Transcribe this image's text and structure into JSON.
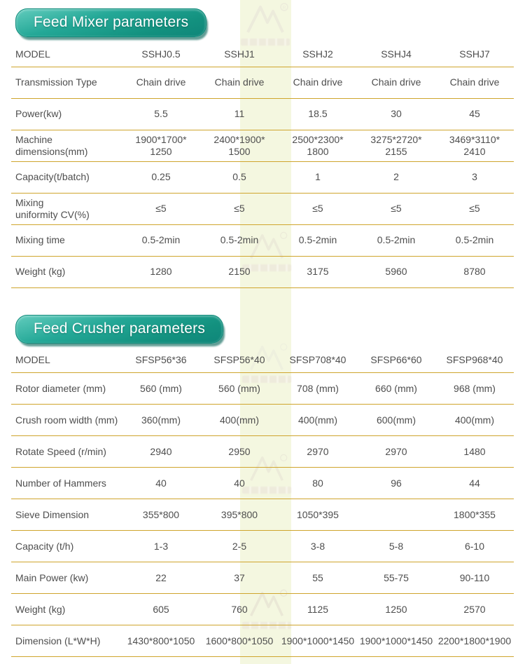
{
  "page": {
    "colors": {
      "accent_line": "#cfa52d",
      "banner_teal": "#17998a",
      "banner_shadow": "#0d685c",
      "text": "#4e4e4e",
      "watermark_stripe": "#f4f7e0"
    }
  },
  "watermark": {
    "name": "manufacturer-logo-watermark"
  },
  "tables": [
    {
      "title": "Feed Mixer parameters",
      "columns": [
        "MODEL",
        "SSHJ0.5",
        "SSHJ1",
        "SSHJ2",
        "SSHJ4",
        "SSHJ7"
      ],
      "rows": [
        {
          "label": "Transmission Type",
          "values": [
            "Chain drive",
            "Chain drive",
            "Chain drive",
            "Chain drive",
            "Chain drive"
          ]
        },
        {
          "label": "Power(kw)",
          "values": [
            "5.5",
            "11",
            "18.5",
            "30",
            "45"
          ]
        },
        {
          "label": "Machine\ndimensions(mm)",
          "values": [
            "1900*1700*\n1250",
            "2400*1900*\n1500",
            "2500*2300*\n1800",
            "3275*2720*\n2155",
            "3469*3110*\n2410"
          ]
        },
        {
          "label": "Capacity(t/batch)",
          "values": [
            "0.25",
            "0.5",
            "1",
            "2",
            "3"
          ]
        },
        {
          "label": "Mixing\nuniformity CV(%)",
          "values": [
            "≤5",
            "≤5",
            "≤5",
            "≤5",
            "≤5"
          ]
        },
        {
          "label": "Mixing time",
          "values": [
            "0.5-2min",
            "0.5-2min",
            "0.5-2min",
            "0.5-2min",
            "0.5-2min"
          ]
        },
        {
          "label": "Weight (kg)",
          "values": [
            "1280",
            "2150",
            "3175",
            "5960",
            "8780"
          ]
        }
      ]
    },
    {
      "title": "Feed Crusher parameters",
      "columns": [
        "MODEL",
        "SFSP56*36",
        "SFSP56*40",
        "SFSP708*40",
        "SFSP66*60",
        "SFSP968*40"
      ],
      "rows": [
        {
          "label": "Rotor diameter (mm)",
          "values": [
            "560 (mm)",
            "560 (mm)",
            "708 (mm)",
            "660 (mm)",
            "968 (mm)"
          ]
        },
        {
          "label": "Crush room width (mm)",
          "values": [
            "360(mm)",
            "400(mm)",
            "400(mm)",
            "600(mm)",
            "400(mm)"
          ]
        },
        {
          "label": "Rotate Speed (r/min)",
          "values": [
            "2940",
            "2950",
            "2970",
            "2970",
            "1480"
          ]
        },
        {
          "label": "Number of Hammers",
          "values": [
            "40",
            "40",
            "80",
            "96",
            "44"
          ]
        },
        {
          "label": "Sieve Dimension",
          "values": [
            "355*800",
            "395*800",
            "1050*395",
            "",
            "1800*355"
          ]
        },
        {
          "label": "Capacity (t/h)",
          "values": [
            "1-3",
            "2-5",
            "3-8",
            "5-8",
            "6-10"
          ]
        },
        {
          "label": "Main Power (kw)",
          "values": [
            "22",
            "37",
            "55",
            "55-75",
            "90-110"
          ]
        },
        {
          "label": "Weight (kg)",
          "values": [
            "605",
            "760",
            "1125",
            "1250",
            "2570"
          ]
        },
        {
          "label": "Dimension (L*W*H)",
          "values": [
            "1430*800*1050",
            "1600*800*1050",
            "1900*1000*1450",
            "1900*1000*1450",
            "2200*1800*1900"
          ]
        }
      ]
    }
  ]
}
